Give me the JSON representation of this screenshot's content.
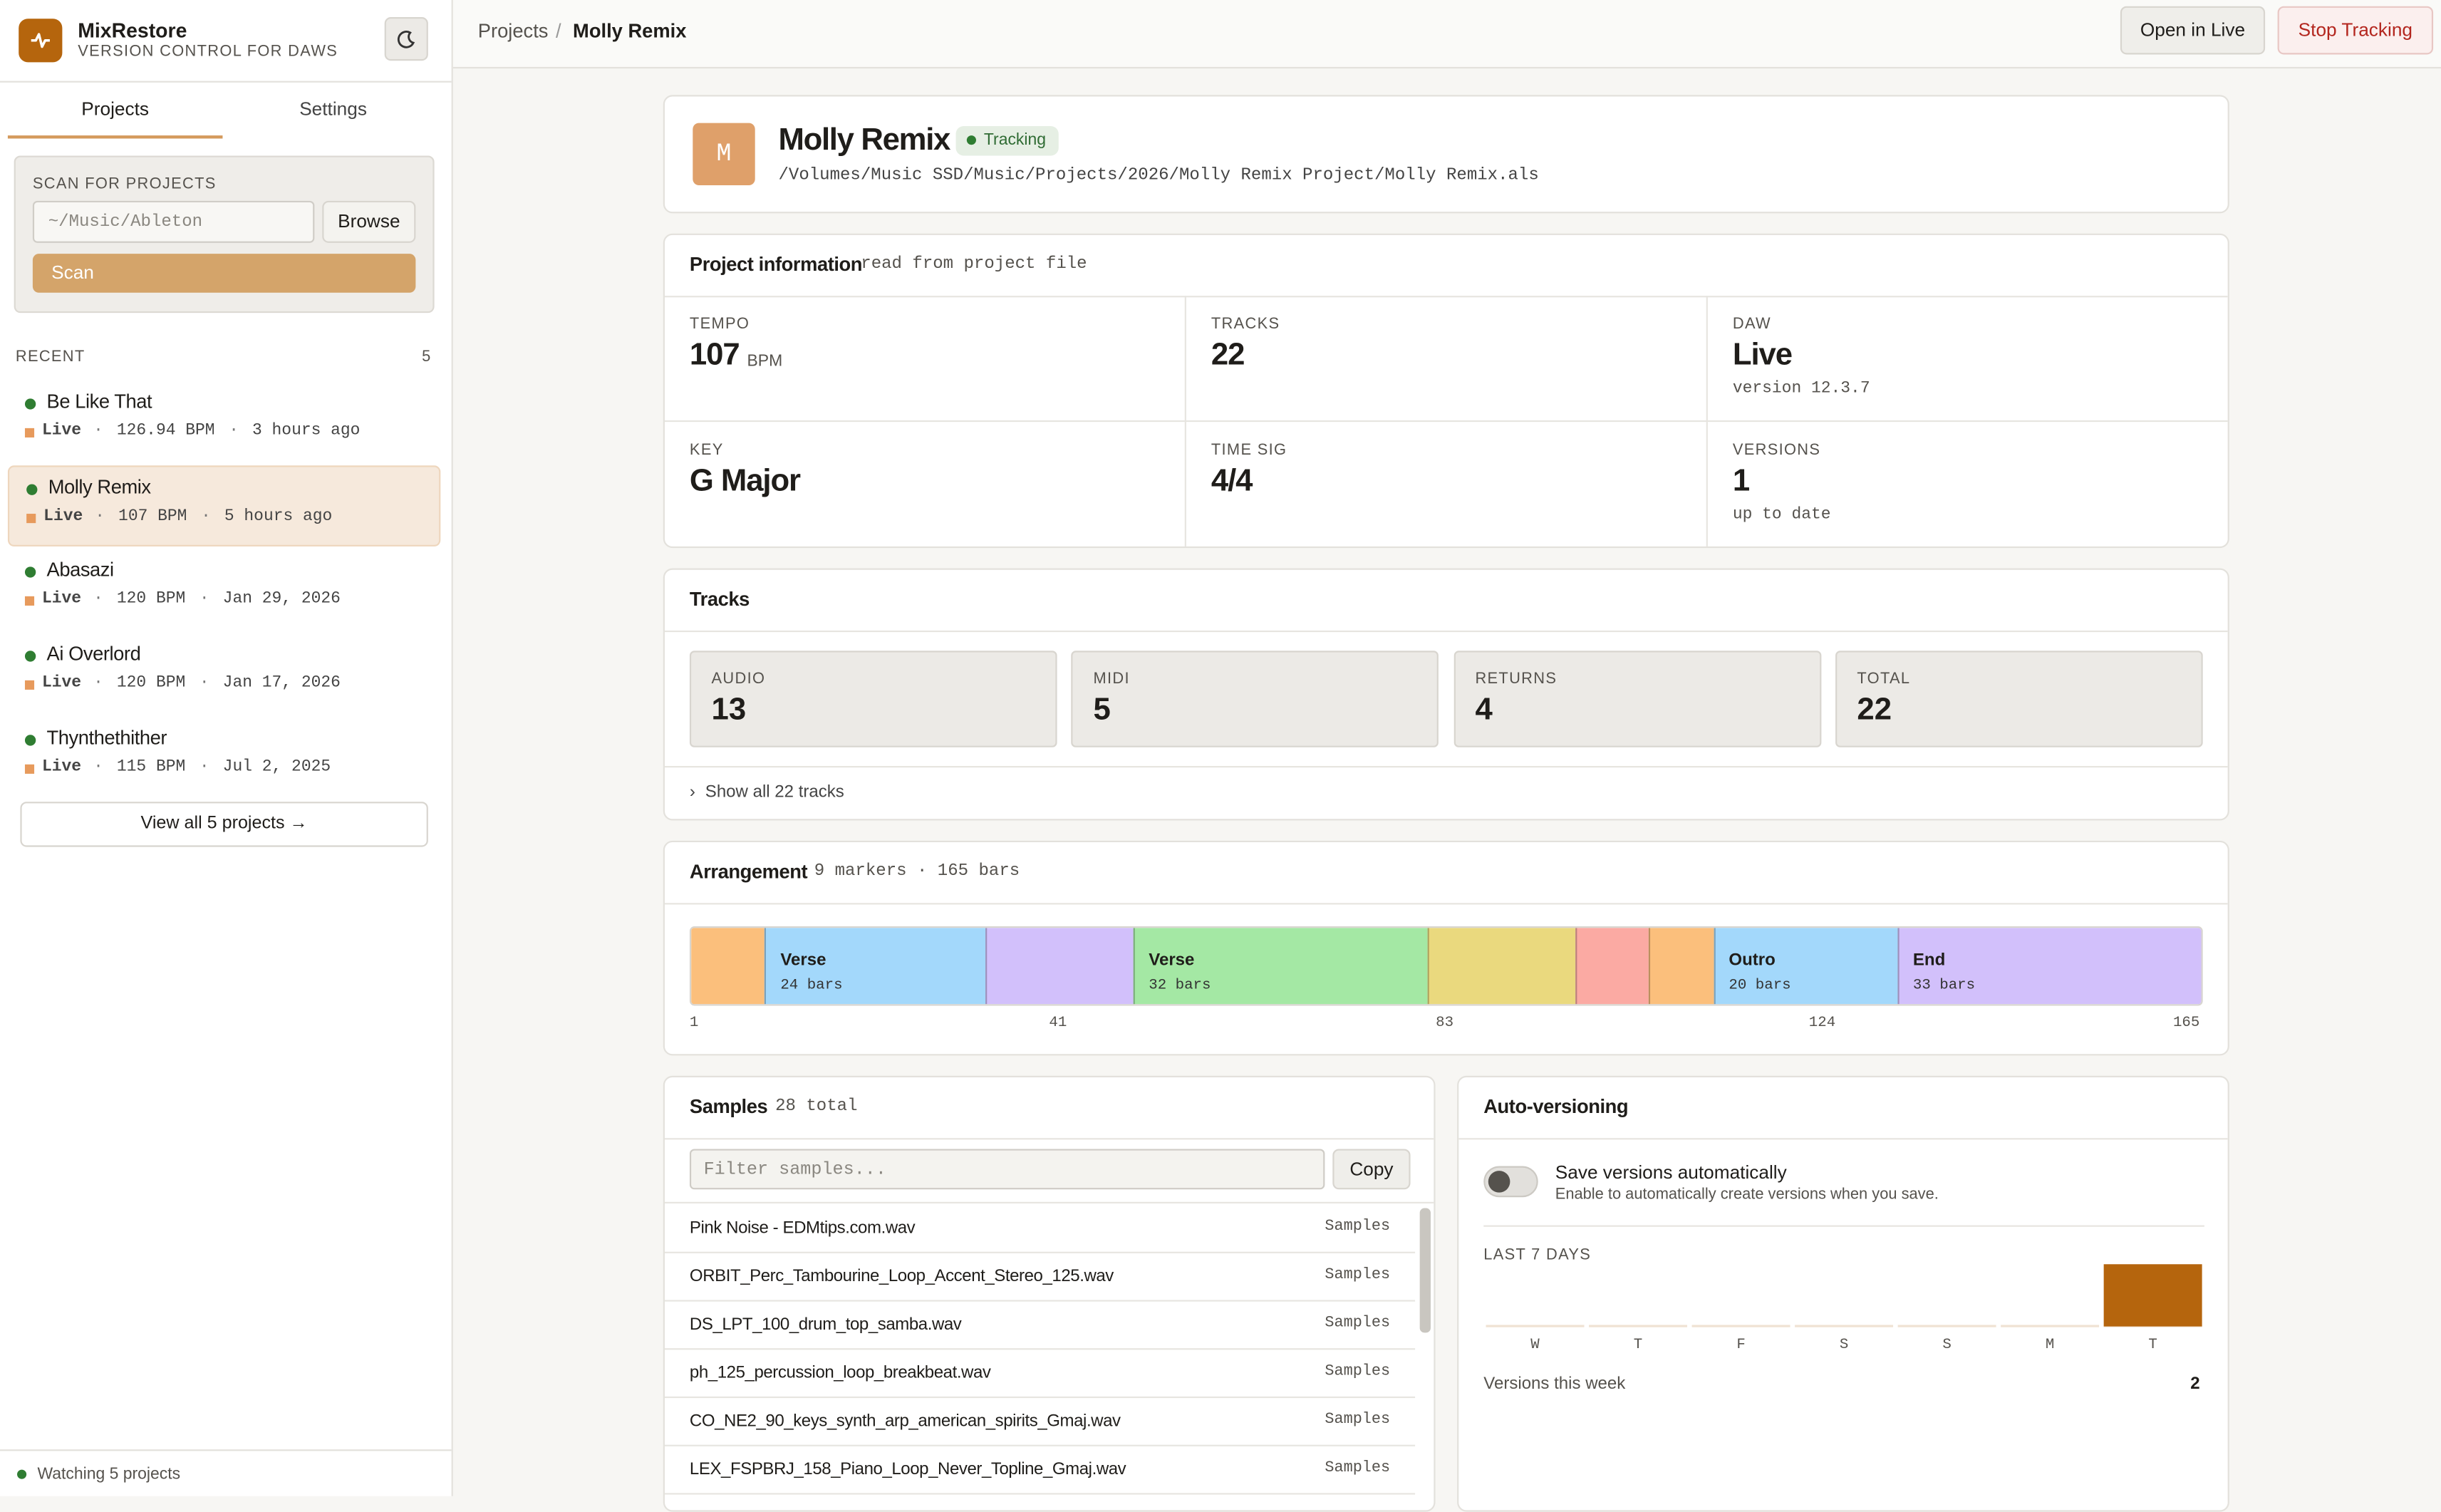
{
  "app": {
    "name": "MixRestore",
    "tagline": "VERSION CONTROL FOR DAWS"
  },
  "sidebar": {
    "tabs": [
      "Projects",
      "Settings"
    ],
    "scan": {
      "title": "SCAN FOR PROJECTS",
      "placeholder": "~/Music/Ableton",
      "browse": "Browse",
      "button": "Scan"
    },
    "recent": {
      "title": "RECENT",
      "count": "5",
      "projects": [
        {
          "name": "Be Like That",
          "daw": "Live",
          "bpm": "126.94 BPM",
          "time": "3 hours ago"
        },
        {
          "name": "Molly Remix",
          "daw": "Live",
          "bpm": "107 BPM",
          "time": "5 hours ago"
        },
        {
          "name": "Abasazi",
          "daw": "Live",
          "bpm": "120 BPM",
          "time": "Jan 29, 2026"
        },
        {
          "name": "Ai Overlord",
          "daw": "Live",
          "bpm": "120 BPM",
          "time": "Jan 17, 2026"
        },
        {
          "name": "Thynthethither",
          "daw": "Live",
          "bpm": "115 BPM",
          "time": "Jul 2, 2025"
        }
      ]
    },
    "view_all": "View all 5 projects →",
    "status": "Watching 5 projects"
  },
  "breadcrumb": [
    "Projects",
    "Molly Remix"
  ],
  "actions": [
    "Open in Live",
    "Stop Tracking"
  ],
  "project": {
    "initial": "M",
    "name": "Molly Remix",
    "status": "Tracking",
    "path": "/Volumes/Music SSD/Music/Projects/2026/Molly Remix Project/Molly Remix.als"
  },
  "info": {
    "title": "Project information",
    "note": "read from project file",
    "fields": [
      {
        "label": "TEMPO",
        "value": "107",
        "unit": "BPM"
      },
      {
        "label": "TRACKS",
        "value": "22"
      },
      {
        "label": "DAW",
        "value": "Live",
        "sub": "version 12.3.7"
      },
      {
        "label": "KEY",
        "value": "G Major"
      },
      {
        "label": "TIME SIG",
        "value": "4/4"
      },
      {
        "label": "VERSIONS",
        "value": "1",
        "sub": "up to date"
      }
    ]
  },
  "tracks": {
    "title": "Tracks",
    "stats": [
      {
        "label": "AUDIO",
        "value": "13"
      },
      {
        "label": "MIDI",
        "value": "5"
      },
      {
        "label": "RETURNS",
        "value": "4"
      },
      {
        "label": "TOTAL",
        "value": "22"
      }
    ],
    "show_all": "Show all 22 tracks"
  },
  "arrangement": {
    "title": "Arrangement",
    "summary": "9 markers · 165 bars",
    "range": [
      1,
      165
    ],
    "ticks": [
      1,
      41,
      83,
      124,
      165
    ],
    "markers": [
      {
        "start": 1,
        "color": "#fbbf7c"
      },
      {
        "start": 9,
        "color": "#a3d8fb",
        "name": "Verse",
        "bars": "24 bars"
      },
      {
        "start": 33,
        "color": "#d2c0fb"
      },
      {
        "start": 49,
        "color": "#a4e8a4",
        "name": "Verse",
        "bars": "32 bars"
      },
      {
        "start": 81,
        "color": "#ead97e"
      },
      {
        "start": 97,
        "color": "#fbaaa3"
      },
      {
        "start": 105,
        "color": "#fbbf7c"
      },
      {
        "start": 112,
        "color": "#a3d8fb",
        "name": "Outro",
        "bars": "20 bars"
      },
      {
        "start": 132,
        "color": "#d2c0fb",
        "name": "End",
        "bars": "33 bars"
      }
    ]
  },
  "samples": {
    "title": "Samples",
    "count": "28 total",
    "filter_placeholder": "Filter samples...",
    "copy": "Copy",
    "items": [
      {
        "name": "Pink Noise - EDMtips.com.wav",
        "folder": "Samples"
      },
      {
        "name": "ORBIT_Perc_Tambourine_Loop_Accent_Stereo_125.wav",
        "folder": "Samples"
      },
      {
        "name": "DS_LPT_100_drum_top_samba.wav",
        "folder": "Samples"
      },
      {
        "name": "ph_125_percussion_loop_breakbeat.wav",
        "folder": "Samples"
      },
      {
        "name": "CO_NE2_90_keys_synth_arp_american_spirits_Gmaj.wav",
        "folder": "Samples"
      },
      {
        "name": "LEX_FSPBRJ_158_Piano_Loop_Never_Topline_Gmaj.wav",
        "folder": "Samples"
      }
    ]
  },
  "auto": {
    "title": "Auto-versioning",
    "toggle_label": "Save versions automatically",
    "toggle_hint": "Enable to automatically create versions when you save.",
    "chart": {
      "type": "bar",
      "title": "LAST 7 DAYS",
      "categories": [
        "W",
        "T",
        "F",
        "S",
        "S",
        "M",
        "T"
      ],
      "values": [
        0,
        0,
        0,
        0,
        0,
        0,
        2
      ],
      "ylim": [
        0,
        2
      ],
      "color": "#b5650d"
    },
    "summary_label": "Versions this week",
    "summary_value": "2"
  }
}
